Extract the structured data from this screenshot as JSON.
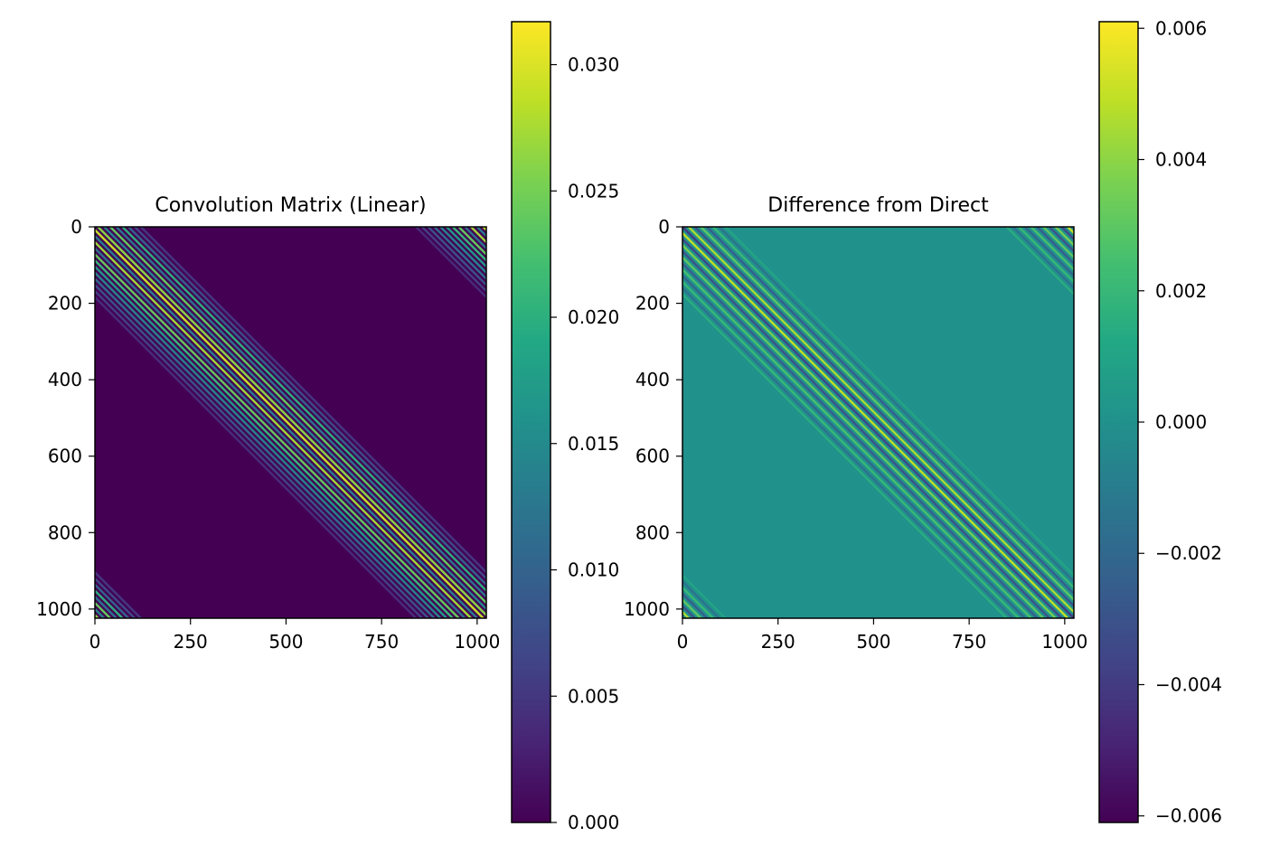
{
  "chart_data": [
    {
      "type": "heatmap",
      "title": "Convolution Matrix (Linear)",
      "xlabel": "",
      "ylabel": "",
      "xlim": [
        0,
        1024
      ],
      "ylim": [
        1024,
        0
      ],
      "xticks": [
        0,
        250,
        500,
        750,
        1000
      ],
      "xtick_labels": [
        "0",
        "250",
        "500",
        "750",
        "1000"
      ],
      "yticks": [
        0,
        200,
        400,
        600,
        800,
        1000
      ],
      "ytick_labels": [
        "0",
        "200",
        "400",
        "600",
        "800",
        "1000"
      ],
      "colormap": "viridis",
      "colorbar": {
        "range": [
          0.0,
          0.0317
        ],
        "ticks": [
          0.0,
          0.005,
          0.01,
          0.015,
          0.02,
          0.025,
          0.03
        ],
        "tick_labels": [
          "0.000",
          "0.005",
          "0.010",
          "0.015",
          "0.020",
          "0.025",
          "0.030"
        ]
      },
      "background_value": 0.0,
      "pattern": "circulant band of diagonals (wraps around corners)",
      "diagonals": [
        {
          "offset": -184,
          "value": 0.004
        },
        {
          "offset": -168,
          "value": 0.006
        },
        {
          "offset": -152,
          "value": 0.008
        },
        {
          "offset": -136,
          "value": 0.011
        },
        {
          "offset": -120,
          "value": 0.014
        },
        {
          "offset": -104,
          "value": 0.017
        },
        {
          "offset": -88,
          "value": 0.021
        },
        {
          "offset": -72,
          "value": 0.024
        },
        {
          "offset": -56,
          "value": 0.012
        },
        {
          "offset": -40,
          "value": 0.027
        },
        {
          "offset": -24,
          "value": 0.013
        },
        {
          "offset": -8,
          "value": 0.029
        },
        {
          "offset": 8,
          "value": 0.026
        },
        {
          "offset": 24,
          "value": 0.014
        },
        {
          "offset": 40,
          "value": 0.024
        },
        {
          "offset": 56,
          "value": 0.012
        },
        {
          "offset": 72,
          "value": 0.02
        },
        {
          "offset": 88,
          "value": 0.01
        },
        {
          "offset": 104,
          "value": 0.007
        },
        {
          "offset": 120,
          "value": 0.005
        }
      ]
    },
    {
      "type": "heatmap",
      "title": "Difference from Direct",
      "xlabel": "",
      "ylabel": "",
      "xlim": [
        0,
        1024
      ],
      "ylim": [
        1024,
        0
      ],
      "xticks": [
        0,
        250,
        500,
        750,
        1000
      ],
      "xtick_labels": [
        "0",
        "250",
        "500",
        "750",
        "1000"
      ],
      "yticks": [
        0,
        200,
        400,
        600,
        800,
        1000
      ],
      "ytick_labels": [
        "0",
        "200",
        "400",
        "600",
        "800",
        "1000"
      ],
      "colormap": "viridis",
      "colorbar": {
        "range": [
          -0.0061,
          0.0061
        ],
        "ticks": [
          -0.006,
          -0.004,
          -0.002,
          0.0,
          0.002,
          0.004,
          0.006
        ],
        "tick_labels": [
          "−0.006",
          "−0.004",
          "−0.002",
          "0.000",
          "0.002",
          "0.004",
          "0.006"
        ]
      },
      "background_value": 0.0,
      "pattern": "band of alternating positive/negative diagonals with sparse dot artifacts",
      "diagonals": [
        {
          "offset": -176,
          "value": 0.0015
        },
        {
          "offset": -160,
          "value": -0.0015
        },
        {
          "offset": -144,
          "value": 0.002
        },
        {
          "offset": -128,
          "value": -0.002
        },
        {
          "offset": -112,
          "value": 0.0025
        },
        {
          "offset": -96,
          "value": -0.0025
        },
        {
          "offset": -80,
          "value": 0.003
        },
        {
          "offset": -64,
          "value": -0.003
        },
        {
          "offset": -48,
          "value": 0.0035
        },
        {
          "offset": -32,
          "value": -0.0035
        },
        {
          "offset": -16,
          "value": 0.005
        },
        {
          "offset": 0,
          "value": -0.004
        },
        {
          "offset": 16,
          "value": 0.0045
        },
        {
          "offset": 32,
          "value": -0.003
        },
        {
          "offset": 48,
          "value": 0.003
        },
        {
          "offset": 64,
          "value": -0.0025
        },
        {
          "offset": 80,
          "value": 0.002
        },
        {
          "offset": 96,
          "value": -0.0015
        },
        {
          "offset": 112,
          "value": 0.001
        }
      ]
    }
  ]
}
